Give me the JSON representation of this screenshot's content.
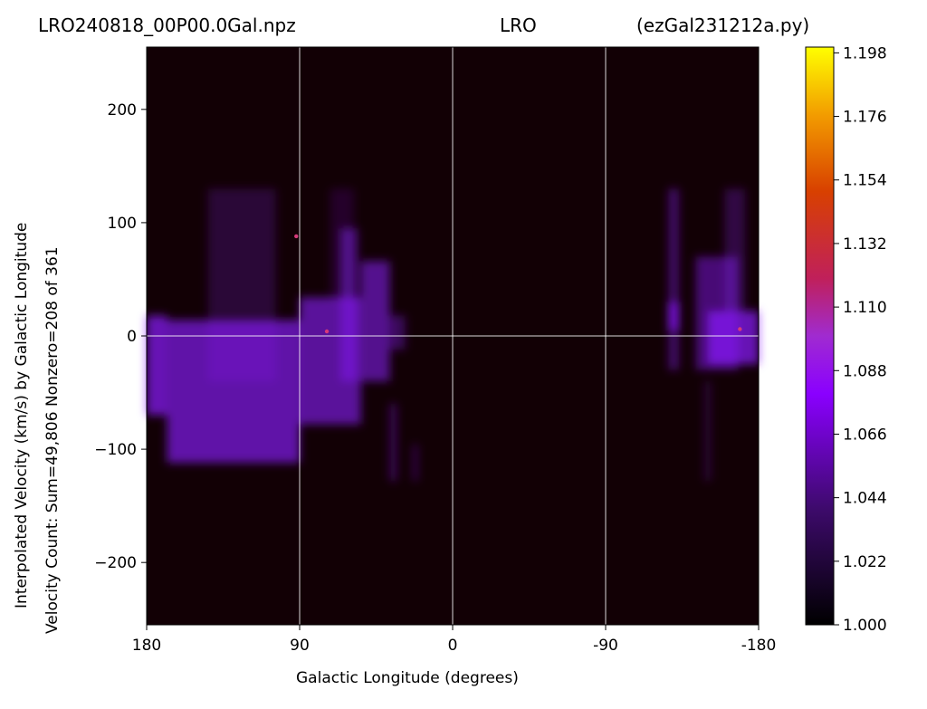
{
  "titles": {
    "left": "LRO240818_00P00.0Gal.npz",
    "center": "LRO",
    "right": "(ezGal231212a.py)"
  },
  "chart_data": {
    "type": "heatmap",
    "xlabel": "Galactic Longitude (degrees)",
    "ylabel_lines": [
      "Interpolated Velocity (km/s) by Galactic Longitude",
      "Velocity Count: Sum=49,806 Nonzero=208 of 361"
    ],
    "xlim": [
      180,
      -180
    ],
    "ylim": [
      -255,
      255
    ],
    "x_ticks": [
      180,
      90,
      0,
      -90,
      -180
    ],
    "x_tick_labels": [
      "180",
      "90",
      "0",
      "-90",
      "-180"
    ],
    "y_ticks": [
      200,
      100,
      0,
      -100,
      -200
    ],
    "y_tick_labels": [
      "200",
      "100",
      "0",
      "−100",
      "−200"
    ],
    "grid_lines_x": [
      90,
      0,
      -90
    ],
    "grid_lines_y": [
      0
    ],
    "colormap": "gnuplot",
    "colorbar": {
      "min": 1.0,
      "max": 1.2,
      "ticks": [
        "1.198",
        "1.176",
        "1.154",
        "1.132",
        "1.110",
        "1.088",
        "1.066",
        "1.044",
        "1.022",
        "1.000"
      ],
      "tick_values": [
        1.198,
        1.176,
        1.154,
        1.132,
        1.11,
        1.088,
        1.066,
        1.044,
        1.022,
        1.0
      ]
    },
    "background_color": "#120005",
    "emission_color": "#8a1cff",
    "regions": [
      {
        "x0": 180,
        "x1": 168,
        "y0": -70,
        "y1": 18,
        "intensity": 0.7
      },
      {
        "x0": 168,
        "x1": 90,
        "y0": -112,
        "y1": 14,
        "intensity": 0.65
      },
      {
        "x0": 90,
        "x1": 54,
        "y0": -78,
        "y1": 34,
        "intensity": 0.6
      },
      {
        "x0": 66,
        "x1": 56,
        "y0": -40,
        "y1": 95,
        "intensity": 0.45
      },
      {
        "x0": 54,
        "x1": 37,
        "y0": -40,
        "y1": 66,
        "intensity": 0.55
      },
      {
        "x0": 37,
        "x1": 28,
        "y0": -12,
        "y1": 18,
        "intensity": 0.35
      },
      {
        "x0": 144,
        "x1": 104,
        "y0": -40,
        "y1": 130,
        "intensity": 0.2
      },
      {
        "x0": 72,
        "x1": 58,
        "y0": 30,
        "y1": 130,
        "intensity": 0.15
      },
      {
        "x0": 37,
        "x1": 33,
        "y0": -128,
        "y1": -60,
        "intensity": 0.35
      },
      {
        "x0": 23,
        "x1": 21,
        "y0": -128,
        "y1": -96,
        "intensity": 0.45
      },
      {
        "x0": -127,
        "x1": -133,
        "y0": -30,
        "y1": 130,
        "intensity": 0.4
      },
      {
        "x0": -127,
        "x1": -133,
        "y0": 5,
        "y1": 30,
        "intensity": 0.75
      },
      {
        "x0": -143,
        "x1": -168,
        "y0": -30,
        "y1": 70,
        "intensity": 0.45
      },
      {
        "x0": -150,
        "x1": -180,
        "y0": -25,
        "y1": 22,
        "intensity": 0.7
      },
      {
        "x0": -148,
        "x1": -152,
        "y0": -128,
        "y1": -40,
        "intensity": 0.2
      },
      {
        "x0": -160,
        "x1": -172,
        "y0": 20,
        "y1": 130,
        "intensity": 0.25
      }
    ],
    "hotspots": [
      {
        "x": 92,
        "y": 88
      },
      {
        "x": 74,
        "y": 4
      },
      {
        "x": -169,
        "y": 6
      }
    ]
  }
}
